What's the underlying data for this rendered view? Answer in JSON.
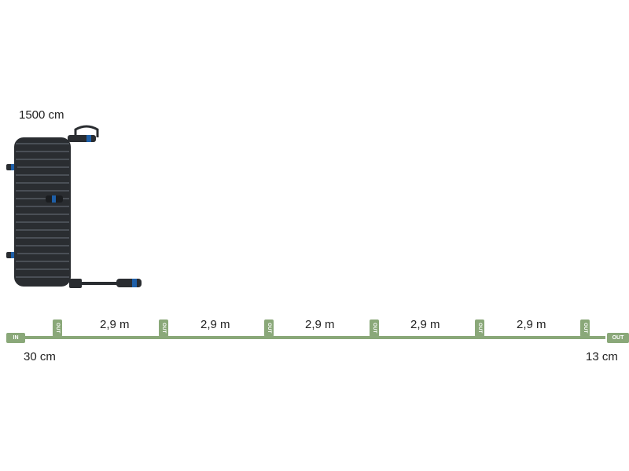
{
  "labels": {
    "coil_length": "1500 cm",
    "start_length": "30 cm",
    "end_length": "13 cm"
  },
  "tags": {
    "in": "IN",
    "out": "OUT"
  },
  "segments": [
    "2,9 m",
    "2,9 m",
    "2,9 m",
    "2,9 m",
    "2,9 m"
  ],
  "colors": {
    "cable": "#8aa879",
    "coil": "#2a2d31",
    "connector_accent": "#1e5fa8"
  },
  "icons": {
    "coil": "cable-coil-icon"
  }
}
